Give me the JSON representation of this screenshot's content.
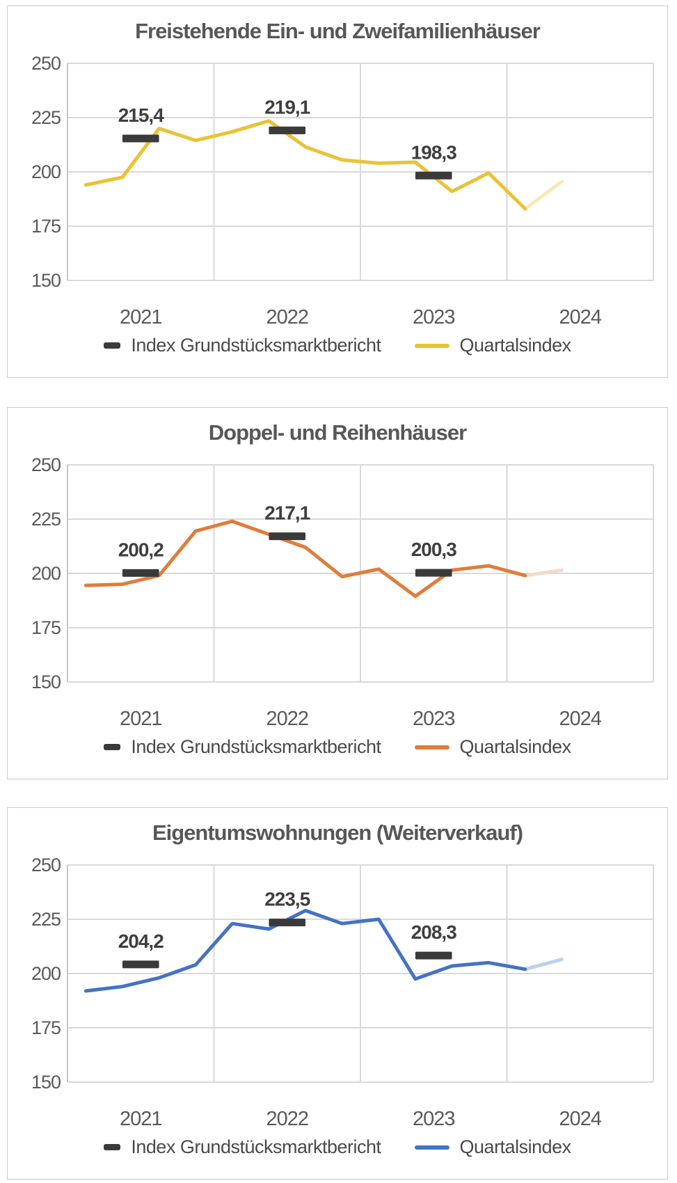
{
  "legend": {
    "index_label": "Index Grundstücksmarktbericht",
    "quarterly_label": "Quartalsindex"
  },
  "colors": {
    "index_dash": "#3a3a3a",
    "grid": "#d9d9d9",
    "plot_border": "#c6c6c6",
    "axis_text": "#595959",
    "annotation_text": "#3f3f3f",
    "title_text": "#575757",
    "card_border": "#c9c9c9"
  },
  "chart_data": [
    {
      "type": "line",
      "title": "Freistehende Ein- und Zweifamilienhäuser",
      "categories": [
        "2021",
        "2022",
        "2023",
        "2024"
      ],
      "quarters_per_year": 4,
      "quarters": [
        "2021-Q1",
        "2021-Q2",
        "2021-Q3",
        "2021-Q4",
        "2022-Q1",
        "2022-Q2",
        "2022-Q3",
        "2022-Q4",
        "2023-Q1",
        "2023-Q2",
        "2023-Q3",
        "2023-Q4",
        "2024-Q1",
        "2024-Q2"
      ],
      "quarterly_values": [
        194,
        197.5,
        220,
        214.5,
        218.5,
        223.5,
        211.5,
        205.5,
        204,
        204.5,
        191,
        199.5,
        183,
        195.5
      ],
      "quarterly_faded_tail": 1,
      "line_color": "#eac234",
      "line_color_faded": "#f7e9b4",
      "index_marks": [
        {
          "year": "2021",
          "value": 215.4,
          "label": "215,4"
        },
        {
          "year": "2022",
          "value": 219.1,
          "label": "219,1"
        },
        {
          "year": "2023",
          "value": 198.3,
          "label": "198,3"
        }
      ],
      "ylim": [
        150,
        250
      ],
      "y_ticks": [
        250,
        225,
        200,
        175,
        150
      ],
      "grid": true,
      "legend_position": "bottom"
    },
    {
      "type": "line",
      "title": "Doppel- und Reihenhäuser",
      "categories": [
        "2021",
        "2022",
        "2023",
        "2024"
      ],
      "quarters_per_year": 4,
      "quarters": [
        "2021-Q1",
        "2021-Q2",
        "2021-Q3",
        "2021-Q4",
        "2022-Q1",
        "2022-Q2",
        "2022-Q3",
        "2022-Q4",
        "2023-Q1",
        "2023-Q2",
        "2023-Q3",
        "2023-Q4",
        "2024-Q1",
        "2024-Q2"
      ],
      "quarterly_values": [
        194.5,
        195,
        199,
        219.5,
        224,
        218,
        212,
        198.5,
        202,
        189.5,
        201.5,
        203.5,
        199,
        201.5
      ],
      "quarterly_faded_tail": 1,
      "line_color": "#e07c3b",
      "line_color_faded": "#f5d9c8",
      "index_marks": [
        {
          "year": "2021",
          "value": 200.2,
          "label": "200,2"
        },
        {
          "year": "2022",
          "value": 217.1,
          "label": "217,1"
        },
        {
          "year": "2023",
          "value": 200.3,
          "label": "200,3"
        }
      ],
      "ylim": [
        150,
        250
      ],
      "y_ticks": [
        250,
        225,
        200,
        175,
        150
      ],
      "grid": true,
      "legend_position": "bottom"
    },
    {
      "type": "line",
      "title": "Eigentumswohnungen (Weiterverkauf)",
      "categories": [
        "2021",
        "2022",
        "2023",
        "2024"
      ],
      "quarters_per_year": 4,
      "quarters": [
        "2021-Q1",
        "2021-Q2",
        "2021-Q3",
        "2021-Q4",
        "2022-Q1",
        "2022-Q2",
        "2022-Q3",
        "2022-Q4",
        "2023-Q1",
        "2023-Q2",
        "2023-Q3",
        "2023-Q4",
        "2024-Q1",
        "2024-Q2"
      ],
      "quarterly_values": [
        192,
        194,
        198,
        204,
        223,
        220.5,
        229,
        223,
        225,
        197.5,
        203.5,
        205,
        202,
        206.5
      ],
      "quarterly_faded_tail": 1,
      "line_color": "#4472c4",
      "line_color_faded": "#bcd1e9",
      "index_marks": [
        {
          "year": "2021",
          "value": 204.2,
          "label": "204,2"
        },
        {
          "year": "2022",
          "value": 223.5,
          "label": "223,5"
        },
        {
          "year": "2023",
          "value": 208.3,
          "label": "208,3"
        }
      ],
      "ylim": [
        150,
        250
      ],
      "y_ticks": [
        250,
        225,
        200,
        175,
        150
      ],
      "grid": true,
      "legend_position": "bottom"
    }
  ]
}
